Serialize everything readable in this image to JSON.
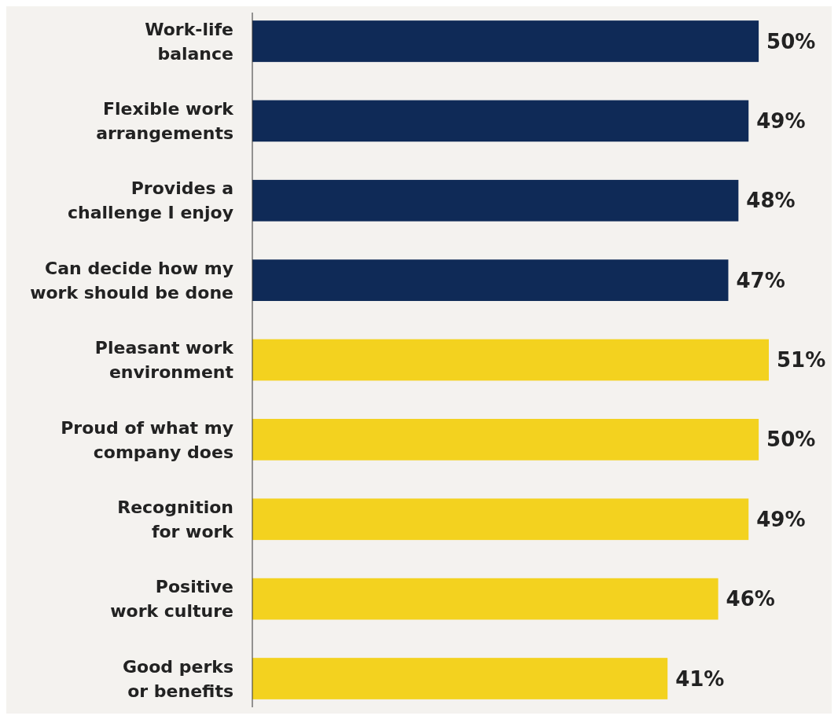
{
  "chart_data": {
    "type": "bar",
    "orientation": "horizontal",
    "categories": [
      "Work-life\nbalance",
      "Flexible work\narrangements",
      "Provides a\nchallenge I enjoy",
      "Can decide how my\nwork should be done",
      "Pleasant work\nenvironment",
      "Proud of what my\ncompany does",
      "Recognition\nfor work",
      "Positive\nwork culture",
      "Good perks\nor benefits"
    ],
    "values": [
      50,
      49,
      48,
      47,
      51,
      50,
      49,
      46,
      41
    ],
    "value_labels": [
      "50%",
      "49%",
      "48%",
      "47%",
      "51%",
      "50%",
      "49%",
      "46%",
      "41%"
    ],
    "colors": [
      "#0f2a57",
      "#0f2a57",
      "#0f2a57",
      "#0f2a57",
      "#f3d21f",
      "#f3d21f",
      "#f3d21f",
      "#f3d21f",
      "#f3d21f"
    ]
  }
}
